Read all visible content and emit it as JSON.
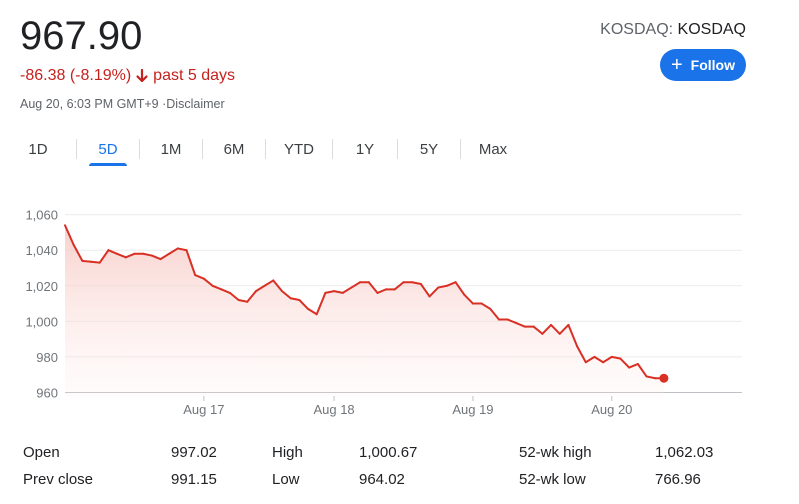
{
  "quote": {
    "price": "967.90",
    "change": "-86.38 (-8.19%)",
    "period": "past 5 days",
    "timestamp": "Aug 20, 6:03 PM GMT+9",
    "disclaimer": "Disclaimer",
    "exchange_label": "KOSDAQ:",
    "exchange_ticker": "KOSDAQ",
    "follow_label": "Follow"
  },
  "tabs": [
    {
      "label": "1D"
    },
    {
      "label": "5D",
      "active": true
    },
    {
      "label": "1M"
    },
    {
      "label": "6M"
    },
    {
      "label": "YTD"
    },
    {
      "label": "1Y"
    },
    {
      "label": "5Y"
    },
    {
      "label": "Max"
    }
  ],
  "colors": {
    "negative": "#c5221f",
    "line": "#d93025",
    "accent": "#1a73e8"
  },
  "chart_data": {
    "type": "area",
    "yticks": [
      960,
      980,
      1000,
      1020,
      1040,
      1060
    ],
    "ytick_labels": [
      "960",
      "980",
      "1,000",
      "1,020",
      "1,040",
      "1,060"
    ],
    "ylim": [
      958,
      1066
    ],
    "xlim": [
      0,
      78
    ],
    "xtick_labels": [
      {
        "label": "Aug 17",
        "x": 16
      },
      {
        "label": "Aug 18",
        "x": 31
      },
      {
        "label": "Aug 19",
        "x": 47
      },
      {
        "label": "Aug 20",
        "x": 63
      }
    ],
    "points": [
      [
        0,
        1054
      ],
      [
        1,
        1043
      ],
      [
        2,
        1034
      ],
      [
        3,
        1033.5
      ],
      [
        4,
        1033
      ],
      [
        5,
        1040
      ],
      [
        6,
        1038
      ],
      [
        7,
        1036
      ],
      [
        8,
        1038
      ],
      [
        9,
        1038
      ],
      [
        10,
        1037
      ],
      [
        11,
        1035
      ],
      [
        12,
        1038
      ],
      [
        13,
        1041
      ],
      [
        14,
        1040
      ],
      [
        15,
        1026
      ],
      [
        16,
        1024
      ],
      [
        17,
        1020
      ],
      [
        18,
        1018
      ],
      [
        19,
        1016
      ],
      [
        20,
        1012
      ],
      [
        21,
        1011
      ],
      [
        22,
        1017
      ],
      [
        23,
        1020
      ],
      [
        24,
        1023
      ],
      [
        25,
        1017
      ],
      [
        26,
        1013
      ],
      [
        27,
        1012
      ],
      [
        28,
        1007
      ],
      [
        29,
        1004
      ],
      [
        30,
        1016
      ],
      [
        31,
        1017
      ],
      [
        32,
        1016
      ],
      [
        33,
        1019
      ],
      [
        34,
        1022
      ],
      [
        35,
        1022
      ],
      [
        36,
        1016
      ],
      [
        37,
        1018
      ],
      [
        38,
        1018
      ],
      [
        39,
        1022
      ],
      [
        40,
        1022
      ],
      [
        41,
        1021
      ],
      [
        42,
        1014
      ],
      [
        43,
        1019
      ],
      [
        44,
        1020
      ],
      [
        45,
        1022
      ],
      [
        46,
        1015
      ],
      [
        47,
        1010
      ],
      [
        48,
        1010
      ],
      [
        49,
        1007
      ],
      [
        50,
        1001
      ],
      [
        51,
        1001
      ],
      [
        52,
        999
      ],
      [
        53,
        997
      ],
      [
        54,
        997
      ],
      [
        55,
        993
      ],
      [
        56,
        998
      ],
      [
        57,
        993
      ],
      [
        58,
        998
      ],
      [
        59,
        986
      ],
      [
        60,
        977
      ],
      [
        61,
        980
      ],
      [
        62,
        977
      ],
      [
        63,
        980
      ],
      [
        64,
        979
      ],
      [
        65,
        974
      ],
      [
        66,
        976
      ],
      [
        67,
        969
      ],
      [
        68,
        968
      ],
      [
        69,
        968
      ]
    ]
  },
  "stats": {
    "open_label": "Open",
    "open_value": "997.02",
    "high_label": "High",
    "high_value": "1,000.67",
    "wk_high_label": "52-wk high",
    "wk_high_value": "1,062.03",
    "prev_close_label": "Prev close",
    "prev_close_value": "991.15",
    "low_label": "Low",
    "low_value": "964.02",
    "wk_low_label": "52-wk low",
    "wk_low_value": "766.96"
  }
}
